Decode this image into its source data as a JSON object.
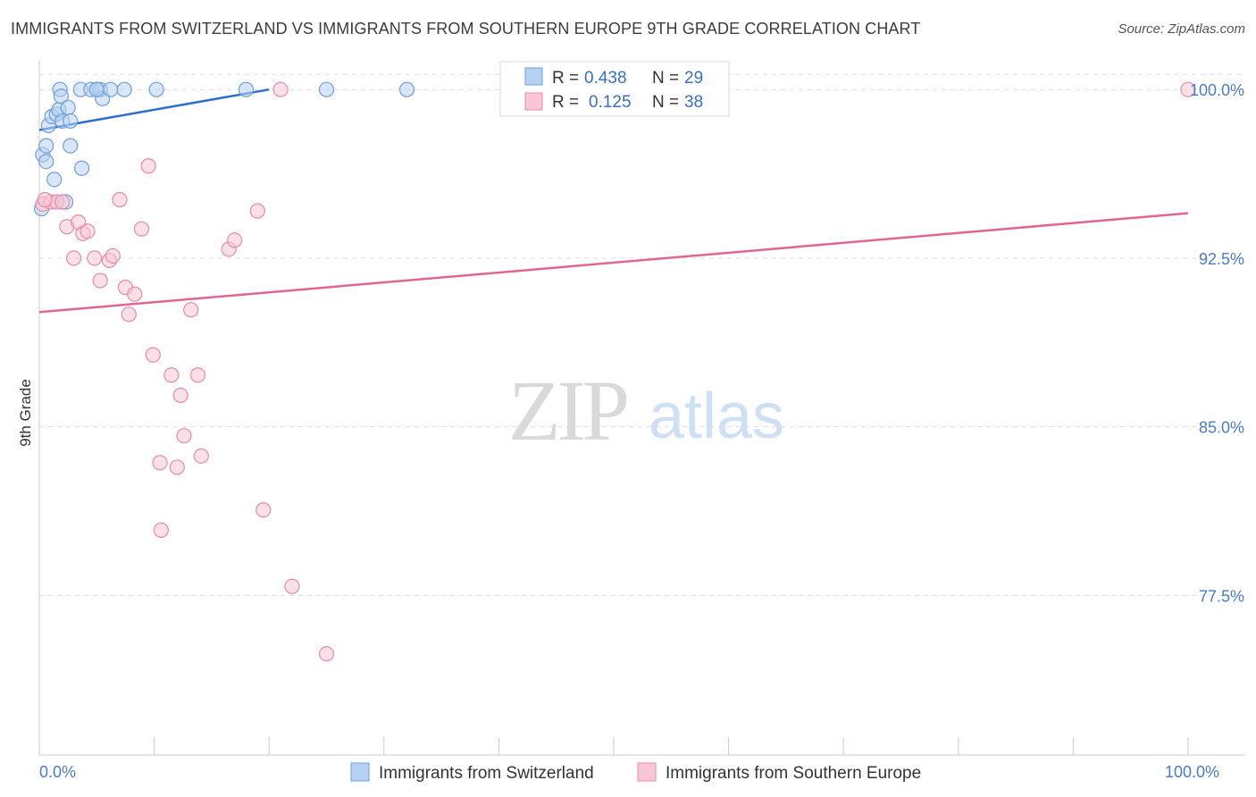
{
  "header": {
    "title": "IMMIGRANTS FROM SWITZERLAND VS IMMIGRANTS FROM SOUTHERN EUROPE 9TH GRADE CORRELATION CHART",
    "source": "Source: ZipAtlas.com"
  },
  "watermark": {
    "zip": "ZIP",
    "atlas": "atlas"
  },
  "colors": {
    "blue_fill": "#b8d1f3",
    "blue_stroke": "#6f9fd8",
    "blue_line": "#2f6fcc",
    "pink_fill": "#f9c6d6",
    "pink_stroke": "#e88aa8",
    "pink_line": "#e06690",
    "grid": "#dddddd",
    "tick_text": "#4a7cc9"
  },
  "chart_data": {
    "type": "scatter",
    "title": "IMMIGRANTS FROM SWITZERLAND VS IMMIGRANTS FROM SOUTHERN EUROPE 9TH GRADE CORRELATION CHART",
    "xlabel": "",
    "ylabel": "9th Grade",
    "xlim": [
      0,
      100
    ],
    "ylim": [
      70.4,
      101.2
    ],
    "x_tick_labels": [
      {
        "value": 0,
        "label": "0.0%"
      },
      {
        "value": 100,
        "label": "100.0%"
      }
    ],
    "y_tick_labels": [
      {
        "value": 100.0,
        "label": "100.0%"
      },
      {
        "value": 92.5,
        "label": "92.5%"
      },
      {
        "value": 85.0,
        "label": "85.0%"
      },
      {
        "value": 77.5,
        "label": "77.5%"
      }
    ],
    "legend": [
      {
        "series": "blue",
        "r_label": "R =",
        "r_value": "0.438",
        "n_label": "N =",
        "n_value": "29"
      },
      {
        "series": "pink",
        "r_label": "R =",
        "r_value": "0.125",
        "n_label": "N =",
        "n_value": "38"
      }
    ],
    "series": [
      {
        "name": "Immigrants from Switzerland",
        "color": "blue",
        "trend": {
          "x": [
            0,
            20
          ],
          "y": [
            98.2,
            100.0
          ]
        },
        "points": [
          {
            "x": 0.2,
            "y": 94.7
          },
          {
            "x": 0.3,
            "y": 97.1
          },
          {
            "x": 0.6,
            "y": 96.8
          },
          {
            "x": 0.6,
            "y": 97.5
          },
          {
            "x": 0.8,
            "y": 98.4
          },
          {
            "x": 1.1,
            "y": 98.8
          },
          {
            "x": 1.3,
            "y": 96.0
          },
          {
            "x": 1.5,
            "y": 98.9
          },
          {
            "x": 1.7,
            "y": 99.1
          },
          {
            "x": 1.8,
            "y": 100.0
          },
          {
            "x": 1.9,
            "y": 99.7
          },
          {
            "x": 2.0,
            "y": 98.6
          },
          {
            "x": 2.3,
            "y": 95.0
          },
          {
            "x": 2.5,
            "y": 99.2
          },
          {
            "x": 2.7,
            "y": 98.6
          },
          {
            "x": 2.7,
            "y": 97.5
          },
          {
            "x": 3.7,
            "y": 96.5
          },
          {
            "x": 3.6,
            "y": 100.0
          },
          {
            "x": 4.5,
            "y": 100.0
          },
          {
            "x": 5.0,
            "y": 100.0
          },
          {
            "x": 5.3,
            "y": 100.0
          },
          {
            "x": 5.5,
            "y": 99.6
          },
          {
            "x": 6.2,
            "y": 100.0
          },
          {
            "x": 7.4,
            "y": 100.0
          },
          {
            "x": 10.2,
            "y": 100.0
          },
          {
            "x": 18.0,
            "y": 100.0
          },
          {
            "x": 25.0,
            "y": 100.0
          },
          {
            "x": 32.0,
            "y": 100.0
          },
          {
            "x": 5.0,
            "y": 100.0
          }
        ]
      },
      {
        "name": "Immigrants from Southern Europe",
        "color": "pink",
        "trend": {
          "x": [
            0,
            100
          ],
          "y": [
            90.1,
            94.5
          ]
        },
        "points": [
          {
            "x": 0.3,
            "y": 94.9
          },
          {
            "x": 1.0,
            "y": 95.0
          },
          {
            "x": 1.5,
            "y": 95.0
          },
          {
            "x": 2.0,
            "y": 95.0
          },
          {
            "x": 2.4,
            "y": 93.9
          },
          {
            "x": 3.0,
            "y": 92.5
          },
          {
            "x": 3.4,
            "y": 94.1
          },
          {
            "x": 3.8,
            "y": 93.6
          },
          {
            "x": 4.2,
            "y": 93.7
          },
          {
            "x": 4.8,
            "y": 92.5
          },
          {
            "x": 5.3,
            "y": 91.5
          },
          {
            "x": 6.1,
            "y": 92.4
          },
          {
            "x": 6.4,
            "y": 92.6
          },
          {
            "x": 7.0,
            "y": 95.1
          },
          {
            "x": 7.5,
            "y": 91.2
          },
          {
            "x": 7.8,
            "y": 90.0
          },
          {
            "x": 8.3,
            "y": 90.9
          },
          {
            "x": 8.9,
            "y": 93.8
          },
          {
            "x": 9.5,
            "y": 96.6
          },
          {
            "x": 9.9,
            "y": 88.2
          },
          {
            "x": 10.5,
            "y": 83.4
          },
          {
            "x": 10.6,
            "y": 80.4
          },
          {
            "x": 11.5,
            "y": 87.3
          },
          {
            "x": 12.0,
            "y": 83.2
          },
          {
            "x": 12.3,
            "y": 86.4
          },
          {
            "x": 12.6,
            "y": 84.6
          },
          {
            "x": 13.2,
            "y": 90.2
          },
          {
            "x": 13.8,
            "y": 87.3
          },
          {
            "x": 14.1,
            "y": 83.7
          },
          {
            "x": 16.5,
            "y": 92.9
          },
          {
            "x": 17.0,
            "y": 93.3
          },
          {
            "x": 19.0,
            "y": 94.6
          },
          {
            "x": 19.5,
            "y": 81.3
          },
          {
            "x": 21.0,
            "y": 100.0
          },
          {
            "x": 22.0,
            "y": 77.9
          },
          {
            "x": 25.0,
            "y": 74.9
          },
          {
            "x": 100.0,
            "y": 100.0
          },
          {
            "x": 0.5,
            "y": 95.1
          }
        ]
      }
    ]
  }
}
